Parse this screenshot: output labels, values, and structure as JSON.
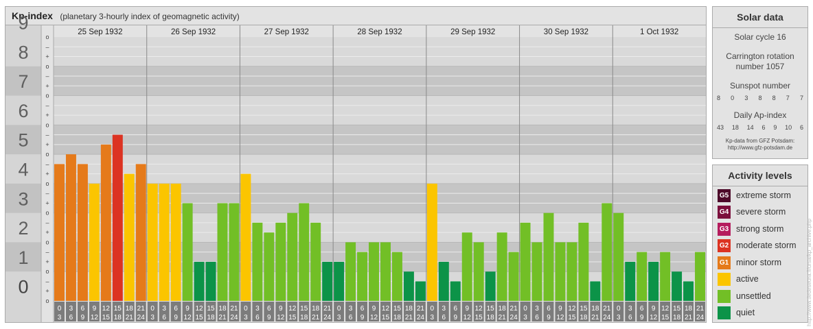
{
  "header": {
    "title": "Kp-index",
    "subtitle": "(planetary 3-hourly index of geomagnetic activity)"
  },
  "chart_data": {
    "type": "bar",
    "title": "Kp-index",
    "subtitle": "(planetary 3-hourly index of geomagnetic activity)",
    "ylim": [
      0,
      9
    ],
    "y_ticks": [
      "0",
      "1",
      "2",
      "3",
      "4",
      "5",
      "6",
      "7",
      "8",
      "9"
    ],
    "sub_ticks": [
      "o",
      "+",
      "–"
    ],
    "days": [
      "25 Sep 1932",
      "26 Sep 1932",
      "27 Sep 1932",
      "28 Sep 1932",
      "29 Sep 1932",
      "30 Sep 1932",
      "1 Oct 1932"
    ],
    "slot_starts": [
      "0",
      "3",
      "6",
      "9",
      "12",
      "15",
      "18",
      "21"
    ],
    "slot_ends": [
      "3",
      "6",
      "9",
      "12",
      "15",
      "18",
      "21",
      "24"
    ],
    "values": [
      [
        4.667,
        5.0,
        4.667,
        4.0,
        5.333,
        5.667,
        4.333,
        4.667
      ],
      [
        4.0,
        4.0,
        4.0,
        3.333,
        1.333,
        1.333,
        3.333,
        3.333
      ],
      [
        4.333,
        2.667,
        2.333,
        2.667,
        3.0,
        3.333,
        2.667,
        1.333
      ],
      [
        1.333,
        2.0,
        1.667,
        2.0,
        2.0,
        1.667,
        1.0,
        0.667
      ],
      [
        4.0,
        1.333,
        0.667,
        2.333,
        2.0,
        1.0,
        2.333,
        1.667
      ],
      [
        2.667,
        2.0,
        3.0,
        2.0,
        2.0,
        2.667,
        0.667,
        3.333
      ],
      [
        3.0,
        1.333,
        1.667,
        1.333,
        1.667,
        1.0,
        0.667,
        1.667
      ]
    ],
    "level_colors": {
      "quiet": "#0c9348",
      "unsettled": "#72bf26",
      "active": "#fbc500",
      "G1": "#e57a1a",
      "G2": "#dc3322"
    },
    "grid": true
  },
  "solar": {
    "title": "Solar data",
    "cycle": "Solar cycle 16",
    "carrington_line1": "Carrington rotation",
    "carrington_line2": "number 1057",
    "sunspot_title": "Sunspot number",
    "sunspot_values": [
      "8",
      "0",
      "3",
      "8",
      "8",
      "7",
      "7"
    ],
    "ap_title": "Daily Ap-index",
    "ap_values": [
      "43",
      "18",
      "14",
      "6",
      "9",
      "10",
      "6"
    ],
    "credit_line1": "Kp-data from GFZ Potsdam:",
    "credit_line2": "http://www.gfz-potsdam.de"
  },
  "legend": {
    "title": "Activity levels",
    "items": [
      {
        "code": "G5",
        "label": "extreme storm",
        "color": "#4d0a2a"
      },
      {
        "code": "G4",
        "label": "severe storm",
        "color": "#7b0f3c"
      },
      {
        "code": "G3",
        "label": "strong storm",
        "color": "#b51c5d"
      },
      {
        "code": "G2",
        "label": "moderate storm",
        "color": "#dc3322"
      },
      {
        "code": "G1",
        "label": "minor storm",
        "color": "#e57a1a"
      },
      {
        "code": "",
        "label": "active",
        "color": "#fbc500"
      },
      {
        "code": "",
        "label": "unsettled",
        "color": "#72bf26"
      },
      {
        "code": "",
        "label": "quiet",
        "color": "#0c9348"
      }
    ]
  },
  "side_credit": "http://www.tiedeseura.fi/ursa/kp_archive.php"
}
